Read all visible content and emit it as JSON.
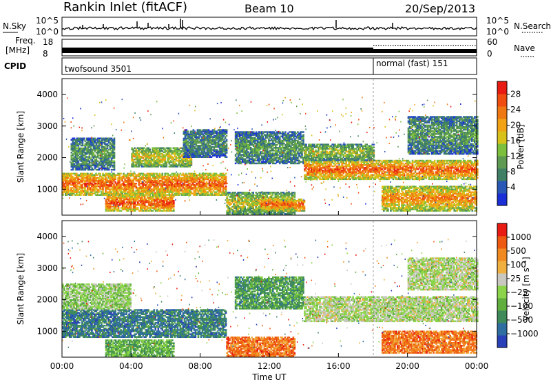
{
  "header": {
    "station": "Rankin Inlet (fitACF)",
    "beam": "Beam 10",
    "date": "20/Sep/2013"
  },
  "noise_panel": {
    "left_label": "N.Sky",
    "right_label": "N.Search",
    "y_ticks": [
      "10^5",
      "10^0"
    ]
  },
  "freq_panel": {
    "left_label_line1": "Freq.",
    "left_label_line2": "[MHz]",
    "right_label": "Nave",
    "left_ticks": [
      "18",
      "8"
    ],
    "right_ticks": [
      "60",
      "0"
    ]
  },
  "cpid_panel": {
    "label": "CPID",
    "modes": [
      {
        "name": "twofsound 3501",
        "start_hour": 0,
        "end_hour": 18
      },
      {
        "name": "normal (fast) 151",
        "start_hour": 18,
        "end_hour": 24
      }
    ]
  },
  "chart_data": [
    {
      "type": "heatmap",
      "name": "power",
      "x": {
        "label": "",
        "range_hours": [
          0,
          24
        ]
      },
      "ylabel": "Slant Range [km]",
      "ylim": [
        180,
        4500
      ],
      "y_ticks": [
        1000,
        2000,
        3000,
        4000
      ],
      "colorbar": {
        "label": "Power [dB]",
        "ticks": [
          4,
          8,
          12,
          16,
          20,
          24,
          28
        ],
        "colors": [
          "#1a2fd6",
          "#2a58b6",
          "#3f7f66",
          "#5e9a52",
          "#7bbf3c",
          "#d8c21a",
          "#f2a215",
          "#f07812",
          "#ef4e10",
          "#e81c12"
        ]
      },
      "bands": [
        {
          "hours": [
            0.0,
            9.5
          ],
          "range_km": [
            800,
            1500
          ],
          "level": 0.85
        },
        {
          "hours": [
            0.5,
            3.0
          ],
          "range_km": [
            1600,
            2600
          ],
          "level": 0.35
        },
        {
          "hours": [
            2.5,
            6.5
          ],
          "range_km": [
            300,
            800
          ],
          "level": 0.9
        },
        {
          "hours": [
            4.0,
            7.5
          ],
          "range_km": [
            1700,
            2300
          ],
          "level": 0.6
        },
        {
          "hours": [
            7.0,
            9.5
          ],
          "range_km": [
            2000,
            2900
          ],
          "level": 0.3
        },
        {
          "hours": [
            9.5,
            13.5
          ],
          "range_km": [
            200,
            900
          ],
          "level": 0.55
        },
        {
          "hours": [
            11.5,
            14.0
          ],
          "range_km": [
            300,
            700
          ],
          "level": 0.85
        },
        {
          "hours": [
            10.0,
            14.0
          ],
          "range_km": [
            1800,
            2800
          ],
          "level": 0.35
        },
        {
          "hours": [
            14.0,
            24.0
          ],
          "range_km": [
            1300,
            1900
          ],
          "level": 0.85
        },
        {
          "hours": [
            14.0,
            18.0
          ],
          "range_km": [
            1900,
            2400
          ],
          "level": 0.5
        },
        {
          "hours": [
            18.5,
            24.0
          ],
          "range_km": [
            300,
            1100
          ],
          "level": 0.75
        },
        {
          "hours": [
            20.0,
            24.0
          ],
          "range_km": [
            2100,
            3300
          ],
          "level": 0.35
        }
      ]
    },
    {
      "type": "heatmap",
      "name": "velocity",
      "x": {
        "label": "Time UT",
        "range_hours": [
          0,
          24
        ],
        "ticks": [
          "00:00",
          "04:00",
          "08:00",
          "12:00",
          "16:00",
          "20:00",
          "00:00"
        ]
      },
      "ylabel": "Slant Range [km]",
      "ylim": [
        180,
        4500
      ],
      "y_ticks": [
        1000,
        2000,
        3000,
        4000
      ],
      "colorbar": {
        "label": "Velocity [m s⁻¹]",
        "ticks": [
          "1000",
          "500",
          "100",
          "25",
          "−25",
          "−100",
          "−500",
          "−1000"
        ],
        "colors": [
          "#2a40b8",
          "#2f6ea0",
          "#3f8a5a",
          "#5fae3e",
          "#8cd44a",
          "#c8c8c0",
          "#f0b040",
          "#f08a20",
          "#ef5a12",
          "#e81c12"
        ]
      },
      "bands": [
        {
          "hours": [
            0.0,
            9.5
          ],
          "range_km": [
            800,
            1700
          ],
          "level": 0.2
        },
        {
          "hours": [
            0.0,
            4.0
          ],
          "range_km": [
            1700,
            2500
          ],
          "level": 0.45
        },
        {
          "hours": [
            2.5,
            6.5
          ],
          "range_km": [
            200,
            700
          ],
          "level": 0.35
        },
        {
          "hours": [
            9.5,
            13.5
          ],
          "range_km": [
            200,
            800
          ],
          "level": 0.8
        },
        {
          "hours": [
            10.0,
            14.0
          ],
          "range_km": [
            1700,
            2700
          ],
          "level": 0.3
        },
        {
          "hours": [
            14.0,
            24.0
          ],
          "range_km": [
            1300,
            2100
          ],
          "level": 0.5
        },
        {
          "hours": [
            18.5,
            24.0
          ],
          "range_km": [
            300,
            1000
          ],
          "level": 0.8
        },
        {
          "hours": [
            20.0,
            24.0
          ],
          "range_km": [
            2300,
            3300
          ],
          "level": 0.5
        }
      ]
    }
  ]
}
